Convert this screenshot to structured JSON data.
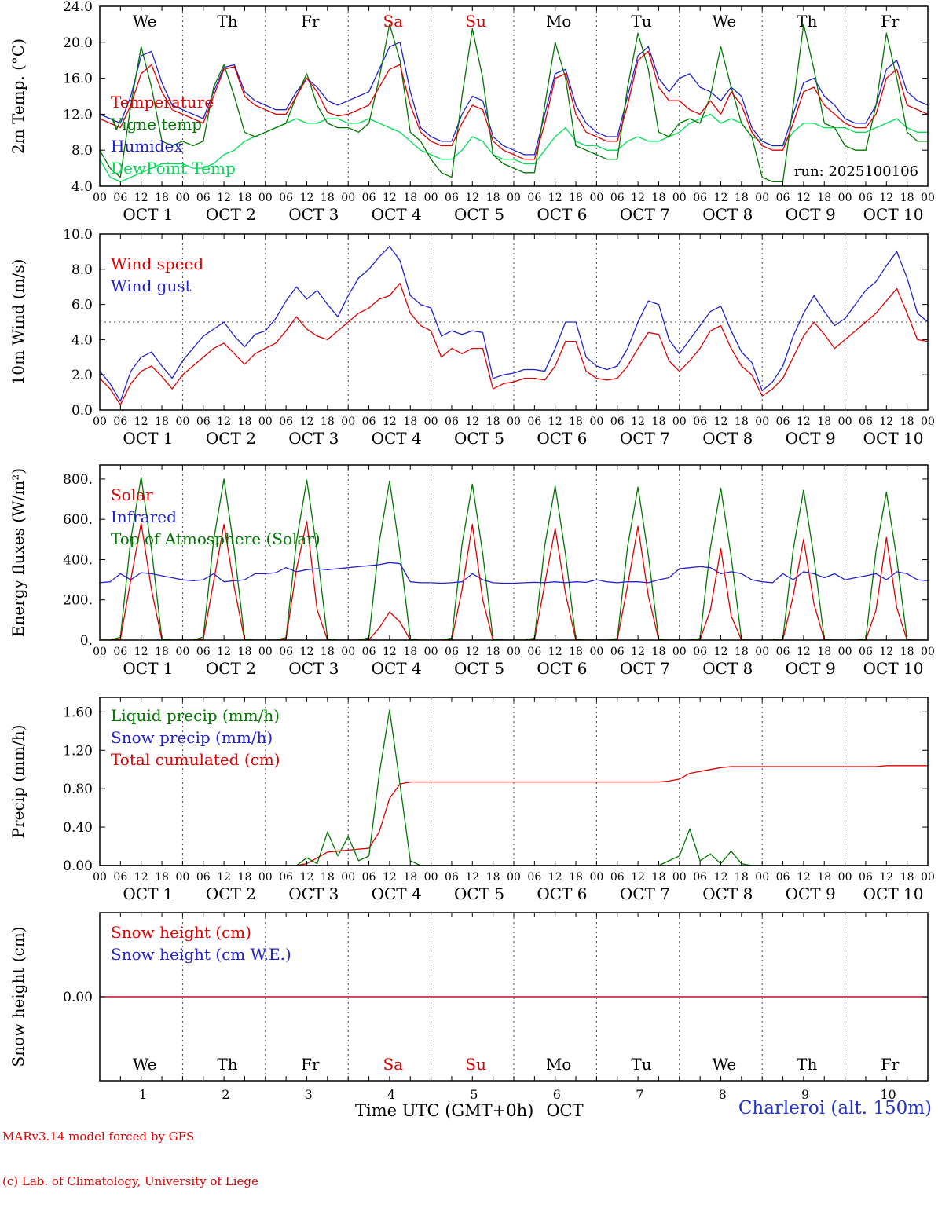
{
  "footer": {
    "credit_line1": "MARv3.14 model forced by GFS",
    "credit_line2": "(c) Lab. of Climatology, University of Liege",
    "xaxis_title": "Time UTC (GMT+0h)",
    "month_label": "OCT",
    "station_label": "Charleroi (alt. 150m)"
  },
  "run_label": "run: 2025100106",
  "hour_labels": [
    "00",
    "06",
    "12",
    "18"
  ],
  "days": [
    {
      "num": "1",
      "label": "OCT  1",
      "dow": "We",
      "red": false
    },
    {
      "num": "2",
      "label": "OCT  2",
      "dow": "Th",
      "red": false
    },
    {
      "num": "3",
      "label": "OCT  3",
      "dow": "Fr",
      "red": false
    },
    {
      "num": "4",
      "label": "OCT  4",
      "dow": "Sa",
      "red": true
    },
    {
      "num": "5",
      "label": "OCT  5",
      "dow": "Su",
      "red": true
    },
    {
      "num": "6",
      "label": "OCT  6",
      "dow": "Mo",
      "red": false
    },
    {
      "num": "7",
      "label": "OCT  7",
      "dow": "Tu",
      "red": false
    },
    {
      "num": "8",
      "label": "OCT  8",
      "dow": "We",
      "red": false
    },
    {
      "num": "9",
      "label": "OCT  9",
      "dow": "Th",
      "red": false
    },
    {
      "num": "10",
      "label": "OCT 10",
      "dow": "Fr",
      "red": false
    }
  ],
  "chart_data": [
    {
      "id": "temp",
      "type": "line",
      "ylabel": "2m Temp. (°C)",
      "ylim": [
        4,
        24
      ],
      "ytick_vals": [
        4,
        8,
        12,
        16,
        20,
        24
      ],
      "ytick_labels": [
        "4.0",
        "8.0",
        "12.0",
        "16.0",
        "20.0",
        "24.0"
      ],
      "x_step_hours": 3,
      "x_range_hours": [
        0,
        240
      ],
      "annotations": [
        {
          "text": "run: 2025100106",
          "pos": "bottom-right"
        }
      ],
      "series": [
        {
          "name": "Temperature",
          "color": "#dd0000",
          "values": [
            11.5,
            11,
            10.5,
            13,
            16.5,
            17.5,
            14.5,
            12.5,
            12,
            11.5,
            11,
            14,
            17,
            17.3,
            14,
            13,
            12.5,
            12,
            12,
            14,
            16,
            14.5,
            12.2,
            11.8,
            12,
            12.5,
            13,
            15,
            17,
            17.5,
            13,
            10,
            9,
            8.5,
            8.5,
            11,
            13,
            12.5,
            9,
            8,
            7.5,
            7,
            7,
            11,
            16,
            16.5,
            12,
            10,
            9.5,
            9,
            9,
            13,
            18,
            19,
            15,
            13.5,
            13.5,
            12.5,
            12,
            13.5,
            12,
            14.5,
            13,
            10,
            8.5,
            8,
            8,
            11,
            14.5,
            15,
            13,
            12,
            11,
            10.5,
            10.5,
            12,
            16,
            17,
            13,
            12.5,
            12
          ]
        },
        {
          "name": "Vigne temp",
          "color": "#007700",
          "values": [
            8,
            6,
            5,
            13,
            19.5,
            15,
            9,
            8.5,
            9,
            8.5,
            9,
            15,
            17.5,
            14,
            10,
            9.5,
            10,
            10.5,
            11,
            14,
            16.5,
            13,
            11,
            10.5,
            10.5,
            10,
            11,
            16,
            22,
            18,
            10,
            9,
            7,
            5.5,
            5,
            14,
            21.5,
            16,
            7.5,
            6.5,
            6,
            5.5,
            5.5,
            13,
            20,
            16,
            8.5,
            8,
            7.5,
            7,
            7,
            15,
            21,
            17,
            10,
            9.5,
            11,
            11.5,
            11,
            14,
            19.5,
            15,
            11,
            9.5,
            5,
            4.5,
            4.5,
            13,
            22,
            17,
            11,
            10.5,
            8.5,
            8,
            8,
            13,
            21,
            16,
            10,
            9,
            9
          ]
        },
        {
          "name": "Humidex",
          "color": "#2222cc",
          "values": [
            12,
            11.5,
            11,
            14,
            18.5,
            19,
            15.5,
            13,
            12.5,
            12,
            11.5,
            14.5,
            17.2,
            17.5,
            14.5,
            13.5,
            13,
            12.5,
            12.5,
            14.5,
            16,
            15,
            13.5,
            13,
            13.5,
            14,
            14.5,
            17,
            19.5,
            20,
            14.5,
            10.5,
            9.5,
            9,
            9,
            12,
            14,
            13.5,
            9.5,
            8.5,
            8,
            7.5,
            7.5,
            12,
            16.5,
            17,
            13,
            11,
            10,
            9.5,
            9.5,
            14,
            18.5,
            19.5,
            16,
            14.5,
            16,
            16.5,
            15,
            14.5,
            13.5,
            15,
            14,
            10.5,
            9,
            8.5,
            8.5,
            12,
            15.5,
            16,
            14,
            13,
            11.5,
            11,
            11,
            13,
            17,
            18,
            14.5,
            13.5,
            13
          ]
        },
        {
          "name": "DewPoint Temp",
          "color": "#00dd55",
          "values": [
            7,
            5,
            4.5,
            5,
            5.5,
            6,
            6.5,
            6.5,
            6.5,
            6,
            6,
            6.5,
            7.5,
            8,
            9,
            9.5,
            10,
            10.5,
            11,
            11.5,
            11,
            11,
            11.5,
            11.5,
            11,
            11,
            11.5,
            11,
            10.5,
            10,
            9,
            8,
            7.5,
            7,
            7,
            8,
            9.5,
            9,
            7.5,
            7,
            7,
            6.5,
            6.5,
            8,
            9.5,
            10.5,
            9,
            8.5,
            8.5,
            8,
            8,
            9,
            9.5,
            9,
            9,
            9.5,
            10,
            11,
            11.5,
            12,
            11,
            11.5,
            11,
            9.5,
            9,
            8.5,
            8.5,
            10,
            11,
            11,
            10.5,
            10.5,
            10.5,
            10,
            10,
            10.5,
            11,
            11.5,
            10.5,
            10,
            10
          ]
        }
      ]
    },
    {
      "id": "wind",
      "type": "line",
      "ylabel": "10m Wind (m/s)",
      "ylim": [
        0,
        10
      ],
      "ytick_vals": [
        0,
        2,
        4,
        6,
        8,
        10
      ],
      "ytick_labels": [
        "0.0",
        "2.0",
        "4.0",
        "6.0",
        "8.0",
        "10.0"
      ],
      "ref_lines": [
        {
          "y": 5
        }
      ],
      "x_step_hours": 3,
      "x_range_hours": [
        0,
        240
      ],
      "series": [
        {
          "name": "Wind speed",
          "color": "#dd0000",
          "values": [
            1.8,
            1.2,
            0.3,
            1.5,
            2.2,
            2.5,
            1.9,
            1.2,
            2,
            2.5,
            3,
            3.5,
            3.8,
            3.2,
            2.6,
            3.2,
            3.5,
            3.8,
            4.5,
            5.3,
            4.6,
            4.2,
            4,
            4.5,
            5,
            5.5,
            5.8,
            6.3,
            6.5,
            7.2,
            5.5,
            4.8,
            4.5,
            3,
            3.5,
            3.2,
            3.5,
            3.5,
            1.2,
            1.5,
            1.6,
            1.8,
            1.8,
            1.7,
            2.5,
            3.9,
            3.9,
            2.2,
            1.8,
            1.7,
            1.8,
            2.5,
            3.5,
            4.4,
            4.3,
            2.8,
            2.2,
            2.8,
            3.5,
            4.5,
            4.8,
            3.5,
            2.5,
            2,
            0.8,
            1.2,
            1.8,
            3,
            4.2,
            5,
            4.3,
            3.5,
            4,
            4.5,
            5,
            5.5,
            6.2,
            6.9,
            5.5,
            4,
            3.9
          ]
        },
        {
          "name": "Wind gust",
          "color": "#2222cc",
          "values": [
            2.2,
            1.5,
            0.5,
            2.2,
            3,
            3.3,
            2.5,
            1.8,
            2.8,
            3.5,
            4.2,
            4.6,
            5,
            4.2,
            3.6,
            4.3,
            4.5,
            5.2,
            6.2,
            7,
            6.3,
            6.8,
            6,
            5.3,
            6.5,
            7.5,
            8,
            8.7,
            9.3,
            8.5,
            6.5,
            6,
            5.8,
            4.2,
            4.5,
            4.3,
            4.5,
            4.4,
            1.8,
            2,
            2.1,
            2.3,
            2.3,
            2.2,
            3.5,
            5,
            5,
            3,
            2.5,
            2.3,
            2.5,
            3.5,
            5,
            6.2,
            6,
            4,
            3.2,
            4,
            4.8,
            5.6,
            5.9,
            4.5,
            3.3,
            2.7,
            1.1,
            1.6,
            2.5,
            4.2,
            5.5,
            6.5,
            5.6,
            4.8,
            5.2,
            6,
            6.8,
            7.3,
            8.2,
            9,
            7.5,
            5.5,
            5
          ]
        }
      ]
    },
    {
      "id": "energy",
      "type": "line",
      "ylabel": "Energy fluxes (W/m²)",
      "ylim": [
        0,
        870
      ],
      "ytick_vals": [
        0,
        200,
        400,
        600,
        800
      ],
      "ytick_labels": [
        "0.",
        "200.",
        "400.",
        "600.",
        "800."
      ],
      "x_step_hours": 3,
      "x_range_hours": [
        0,
        240
      ],
      "series": [
        {
          "name": "Solar",
          "color": "#dd0000",
          "values": [
            0,
            0,
            5,
            300,
            580,
            250,
            0,
            0,
            0,
            0,
            5,
            290,
            575,
            260,
            0,
            0,
            0,
            0,
            5,
            350,
            590,
            150,
            0,
            0,
            0,
            0,
            2,
            60,
            140,
            90,
            0,
            0,
            0,
            0,
            2,
            250,
            575,
            200,
            0,
            0,
            0,
            0,
            2,
            280,
            555,
            230,
            0,
            0,
            0,
            0,
            2,
            270,
            565,
            220,
            0,
            0,
            0,
            0,
            2,
            150,
            455,
            120,
            0,
            0,
            0,
            0,
            2,
            220,
            500,
            180,
            0,
            0,
            0,
            0,
            0,
            150,
            510,
            160,
            0,
            0,
            0
          ]
        },
        {
          "name": "Infrared",
          "color": "#2222cc",
          "values": [
            285,
            290,
            330,
            300,
            335,
            330,
            320,
            310,
            300,
            295,
            300,
            330,
            290,
            295,
            300,
            330,
            330,
            335,
            360,
            340,
            350,
            355,
            350,
            355,
            360,
            365,
            370,
            375,
            385,
            380,
            290,
            285,
            285,
            283,
            285,
            290,
            330,
            300,
            285,
            283,
            283,
            285,
            287,
            285,
            290,
            285,
            290,
            287,
            300,
            290,
            285,
            290,
            290,
            285,
            300,
            310,
            355,
            360,
            365,
            360,
            330,
            340,
            330,
            300,
            290,
            285,
            330,
            300,
            340,
            330,
            310,
            330,
            300,
            310,
            320,
            330,
            300,
            340,
            330,
            300,
            295
          ]
        },
        {
          "name": "Top of Atmosphere (Solar)",
          "color": "#007700",
          "values": [
            0,
            0,
            15,
            500,
            810,
            450,
            5,
            0,
            0,
            0,
            15,
            495,
            800,
            445,
            5,
            0,
            0,
            0,
            12,
            490,
            795,
            440,
            5,
            0,
            0,
            0,
            12,
            485,
            790,
            435,
            5,
            0,
            0,
            0,
            10,
            475,
            775,
            430,
            5,
            0,
            0,
            0,
            10,
            470,
            765,
            425,
            4,
            0,
            0,
            0,
            8,
            465,
            760,
            420,
            4,
            0,
            0,
            0,
            8,
            460,
            755,
            415,
            3,
            0,
            0,
            0,
            6,
            450,
            745,
            410,
            3,
            0,
            0,
            0,
            5,
            445,
            735,
            405,
            2,
            0,
            0
          ]
        }
      ]
    },
    {
      "id": "precip",
      "type": "line",
      "ylabel": "Precip (mm/h)",
      "ylim": [
        0,
        1.75
      ],
      "ytick_vals": [
        0,
        0.4,
        0.8,
        1.2,
        1.6
      ],
      "ytick_labels": [
        "0.00",
        "0.40",
        "0.80",
        "1.20",
        "1.60"
      ],
      "x_step_hours": 3,
      "x_range_hours": [
        0,
        240
      ],
      "series": [
        {
          "name": "Liquid precip (mm/h)",
          "color": "#007700",
          "values": [
            0,
            0,
            0,
            0,
            0,
            0,
            0,
            0,
            0,
            0,
            0,
            0,
            0,
            0,
            0,
            0,
            0,
            0,
            0,
            0,
            0.08,
            0.02,
            0.35,
            0.1,
            0.3,
            0.05,
            0.1,
            0.95,
            1.62,
            0.85,
            0.05,
            0,
            0,
            0,
            0,
            0,
            0,
            0,
            0,
            0,
            0,
            0,
            0,
            0,
            0,
            0,
            0,
            0,
            0,
            0,
            0,
            0,
            0,
            0,
            0,
            0.05,
            0.1,
            0.38,
            0.05,
            0.12,
            0.02,
            0.15,
            0.02,
            0,
            0,
            0,
            0,
            0,
            0,
            0,
            0,
            0,
            0,
            0,
            0,
            0,
            0,
            0,
            0,
            0,
            0
          ]
        },
        {
          "name": "Snow precip (mm/h)",
          "color": "#2222cc",
          "constant": 0
        },
        {
          "name": "Total cumulated (cm)",
          "color": "#dd0000",
          "values": [
            0,
            0,
            0,
            0,
            0,
            0,
            0,
            0,
            0,
            0,
            0,
            0,
            0,
            0,
            0,
            0,
            0,
            0,
            0,
            0,
            0.02,
            0.08,
            0.14,
            0.15,
            0.16,
            0.17,
            0.18,
            0.35,
            0.7,
            0.85,
            0.87,
            0.87,
            0.87,
            0.87,
            0.87,
            0.87,
            0.87,
            0.87,
            0.87,
            0.87,
            0.87,
            0.87,
            0.87,
            0.87,
            0.87,
            0.87,
            0.87,
            0.87,
            0.87,
            0.87,
            0.87,
            0.87,
            0.87,
            0.87,
            0.87,
            0.88,
            0.9,
            0.96,
            0.98,
            1,
            1.02,
            1.03,
            1.03,
            1.03,
            1.03,
            1.03,
            1.03,
            1.03,
            1.03,
            1.03,
            1.03,
            1.03,
            1.03,
            1.03,
            1.03,
            1.03,
            1.04,
            1.04,
            1.04,
            1.04,
            1.04
          ]
        }
      ]
    },
    {
      "id": "snow",
      "type": "line",
      "ylabel": "Snow height (cm)",
      "ylim": [
        -1,
        1
      ],
      "ytick_vals": [
        0
      ],
      "ytick_labels": [
        "0.00"
      ],
      "x_step_hours": 3,
      "x_range_hours": [
        0,
        240
      ],
      "series": [
        {
          "name": "Snow height (cm)",
          "color": "#dd0000",
          "constant": 0
        },
        {
          "name": "Snow height (cm W.E.)",
          "color": "#2222cc",
          "constant": 0
        }
      ]
    }
  ]
}
